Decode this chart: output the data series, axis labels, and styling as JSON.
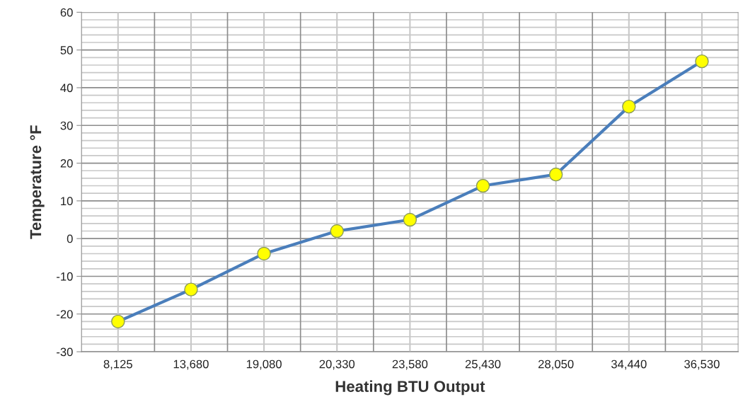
{
  "chart_data": {
    "type": "line",
    "xlabel": "Heating BTU Output",
    "ylabel": "Temperature °F",
    "categories": [
      "8,125",
      "13,680",
      "19,080",
      "20,330",
      "23,580",
      "25,430",
      "28,050",
      "34,440",
      "36,530"
    ],
    "series": [
      {
        "color": "#4a7ebb",
        "values": [
          -22,
          -13.5,
          -4,
          2,
          5,
          14,
          17,
          35,
          47
        ]
      }
    ],
    "ylim": [
      -30,
      60
    ],
    "yticks": [
      -30,
      -20,
      -10,
      0,
      10,
      20,
      30,
      40,
      50,
      60
    ],
    "grid": true,
    "marker": "circle",
    "line_style": "solid"
  }
}
